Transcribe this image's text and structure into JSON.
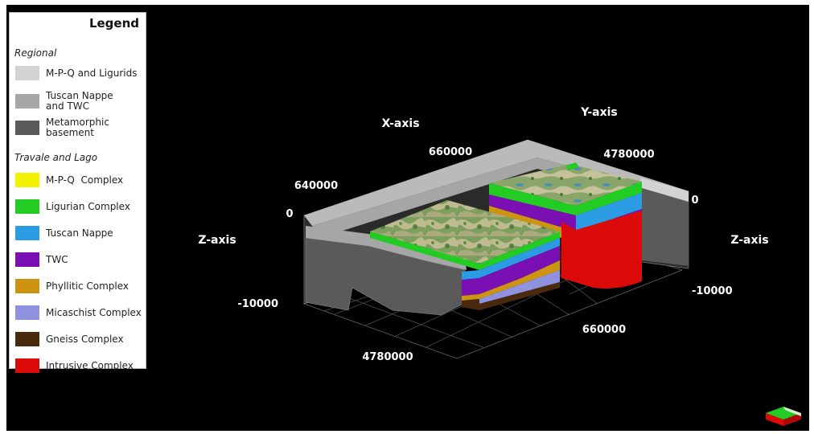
{
  "legend": {
    "title": "Legend",
    "sections": [
      {
        "name": "Regional",
        "items": [
          {
            "label": "M-P-Q and Ligurids",
            "color": "#d3d3d3"
          },
          {
            "label": "Tuscan Nappe and TWC",
            "color": "#a6a6a6"
          },
          {
            "label": "Metamorphic basement",
            "color": "#5a5a5a"
          }
        ]
      },
      {
        "name": "Travale and Lago",
        "items": [
          {
            "label": "M-P-Q  Complex",
            "color": "#f2f200"
          },
          {
            "label": "Ligurian Complex",
            "color": "#22cc22"
          },
          {
            "label": "Tuscan Nappe",
            "color": "#2b9be3"
          },
          {
            "label": "TWC",
            "color": "#7a0fb3"
          },
          {
            "label": "Phyllitic Complex",
            "color": "#cc9410"
          },
          {
            "label": "Micaschist Complex",
            "color": "#8f93df"
          },
          {
            "label": "Gneiss Complex",
            "color": "#4a2a0e"
          },
          {
            "label": "Intrusive Complex",
            "color": "#dd0a0a"
          }
        ]
      }
    ]
  },
  "axes": {
    "x_label": "X-axis",
    "y_label": "Y-axis",
    "z_label_left": "Z-axis",
    "z_label_right": "Z-axis",
    "x_ticks": [
      "640000",
      "660000"
    ],
    "y_ticks": [
      "4780000",
      "660000"
    ],
    "y_ticks_front": "4780000",
    "z_left": [
      "0",
      "-10000"
    ],
    "z_right": [
      "0",
      "-10000"
    ]
  }
}
